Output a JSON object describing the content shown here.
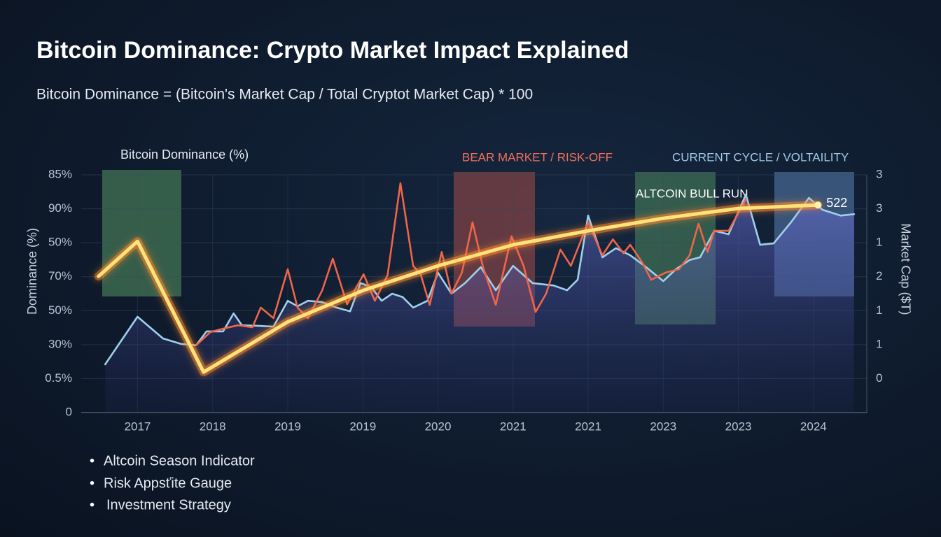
{
  "chart_data": {
    "type": "line",
    "title": "Bitcoin Dominance: Crypto Market Impact Explained",
    "subtitle": "Bitcoin Dominance = (Bitcoin's Market Cap / Total Cryptot Market Cap) * 100",
    "y_label": "Dominance (%)",
    "y2_label": "Market Cap ($T)",
    "legend_title": "Bitcoin Dominance (%)",
    "annotations": [
      "BEAR MARKET / RISK-OFF",
      "CURRENT CYCLE / VOLTAILITY",
      "ALTCOIN BULL RUN"
    ],
    "end_label": "522",
    "categories": [
      "2017",
      "2018",
      "2019",
      "2019",
      "2020",
      "2021",
      "2021",
      "2023",
      "2023",
      "2024"
    ],
    "xlim": [
      -0.75,
      9.71
    ],
    "ylim": [
      0,
      7
    ],
    "yticks": [
      {
        "value": 0,
        "label": "0"
      },
      {
        "value": 1,
        "label": "0.5%"
      },
      {
        "value": 2,
        "label": "30%"
      },
      {
        "value": 3,
        "label": "50%"
      },
      {
        "value": 4,
        "label": "70%"
      },
      {
        "value": 5,
        "label": "50%"
      },
      {
        "value": 6,
        "label": "90%"
      },
      {
        "value": 7,
        "label": "85%"
      }
    ],
    "y2lim": [
      0,
      7
    ],
    "y2ticks": [
      {
        "value": 1,
        "label": "0"
      },
      {
        "value": 2,
        "label": "1"
      },
      {
        "value": 3,
        "label": "1"
      },
      {
        "value": 4,
        "label": "2"
      },
      {
        "value": 5,
        "label": "1"
      },
      {
        "value": 6,
        "label": "3"
      },
      {
        "value": 7,
        "label": "3"
      }
    ],
    "series": [
      {
        "color": "#9fd0ea",
        "area": true,
        "x": [
          -0.43,
          0,
          0.34,
          0.58,
          0.78,
          0.92,
          1.14,
          1.28,
          1.39,
          1.62,
          1.81,
          2,
          2.13,
          2.27,
          2.46,
          2.65,
          2.83,
          2.97,
          3.11,
          3.25,
          3.39,
          3.53,
          3.67,
          3.86,
          4,
          4.18,
          4.36,
          4.57,
          4.77,
          5,
          5.26,
          5.54,
          5.72,
          5.86,
          6,
          6.19,
          6.37,
          6.56,
          6.75,
          7,
          7.17,
          7.35,
          7.49,
          7.68,
          7.87,
          8.1,
          8.29,
          8.47,
          8.7,
          8.94,
          9.12,
          9.36,
          9.54
        ],
        "values": [
          1.42,
          2.82,
          2.18,
          2.02,
          1.98,
          2.39,
          2.39,
          2.92,
          2.57,
          2.55,
          2.53,
          3.29,
          3.13,
          3.29,
          3.25,
          3.09,
          2.98,
          3.81,
          3.7,
          3.29,
          3.5,
          3.4,
          3.09,
          3.29,
          4.12,
          3.5,
          3.81,
          4.28,
          3.6,
          4.32,
          3.81,
          3.74,
          3.6,
          3.91,
          5.8,
          4.57,
          4.84,
          4.63,
          4.32,
          3.87,
          4.22,
          4.49,
          4.57,
          5.35,
          5.25,
          6.42,
          4.94,
          4.98,
          5.6,
          6.32,
          5.97,
          5.8,
          5.84
        ]
      },
      {
        "color": "#f0654a",
        "x": [
          0.78,
          0.97,
          1.14,
          1.34,
          1.53,
          1.64,
          1.81,
          2,
          2.13,
          2.27,
          2.46,
          2.6,
          2.79,
          3.01,
          3.16,
          3.33,
          3.5,
          3.67,
          3.77,
          3.89,
          4.05,
          4.18,
          4.32,
          4.46,
          4.6,
          4.77,
          4.98,
          5.14,
          5.3,
          5.44,
          5.63,
          5.77,
          6,
          6.19,
          6.33,
          6.47,
          6.56,
          6.72,
          6.84,
          7.03,
          7.21,
          7.35,
          7.47,
          7.59,
          7.68,
          7.87,
          8.1
        ],
        "values": [
          1.98,
          2.37,
          2.47,
          2.57,
          2.51,
          3.09,
          2.78,
          4.22,
          3.09,
          2.78,
          3.6,
          4.53,
          3.19,
          4.07,
          3.29,
          4.05,
          6.75,
          4.32,
          4.07,
          3.17,
          4.73,
          3.5,
          4.12,
          5.6,
          4.28,
          3.17,
          5.19,
          4.32,
          2.96,
          3.5,
          4.8,
          4.32,
          5.6,
          4.63,
          5.1,
          4.69,
          4.94,
          4.42,
          3.91,
          4.12,
          4.22,
          4.63,
          5.56,
          4.73,
          5.35,
          5.35,
          6.28
        ]
      },
      {
        "color": "#ffe27a",
        "glow": true,
        "x": [
          -0.52,
          0,
          0.88,
          2,
          3.01,
          4,
          5,
          6,
          7,
          8,
          9.06
        ],
        "values": [
          4.01,
          5.04,
          1.19,
          2.67,
          3.6,
          4.32,
          4.94,
          5.35,
          5.72,
          6.01,
          6.11
        ]
      }
    ]
  }
}
